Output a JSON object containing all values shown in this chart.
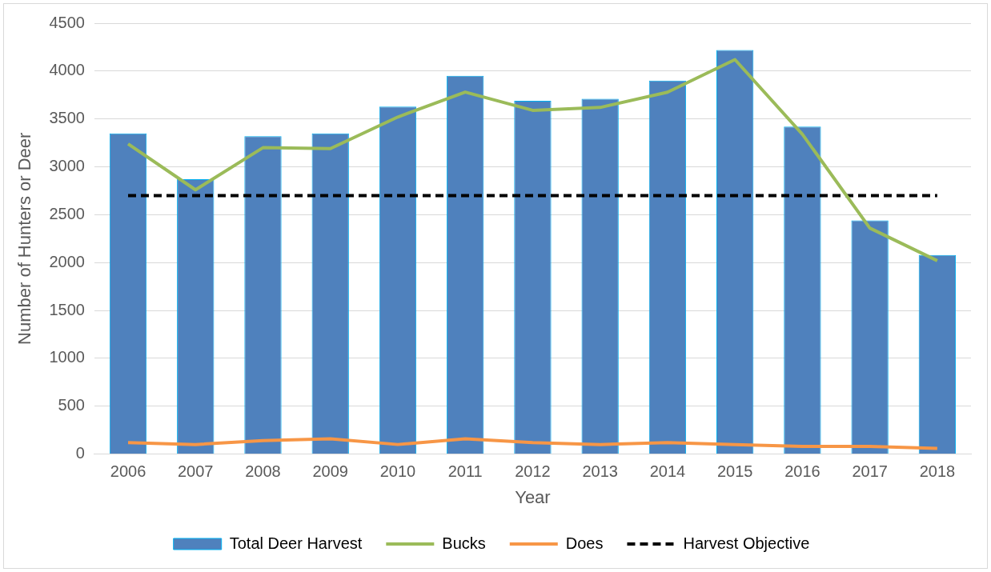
{
  "chart_data": {
    "type": "bar",
    "xlabel": "Year",
    "ylabel": "Number of Hunters or Deer",
    "categories": [
      "2006",
      "2007",
      "2008",
      "2009",
      "2010",
      "2011",
      "2012",
      "2013",
      "2014",
      "2015",
      "2016",
      "2017",
      "2018"
    ],
    "series": [
      {
        "name": "Total Deer Harvest",
        "color": "#4f81bd",
        "values": [
          3350,
          2870,
          3320,
          3350,
          3630,
          3950,
          3690,
          3710,
          3900,
          4220,
          3420,
          2440,
          2080
        ]
      },
      {
        "name": "Bucks",
        "type": "line",
        "color": "#9bbb59",
        "values": [
          3240,
          2760,
          3200,
          3190,
          3520,
          3780,
          3590,
          3620,
          3780,
          4120,
          3340,
          2360,
          2020
        ]
      },
      {
        "name": "Does",
        "type": "line",
        "color": "#f79646",
        "values": [
          120,
          100,
          140,
          160,
          100,
          160,
          120,
          100,
          120,
          100,
          80,
          80,
          60
        ]
      },
      {
        "name": "Harvest Objective",
        "type": "line",
        "color": "#000000",
        "line_style": "dashed",
        "values": [
          2700,
          2700,
          2700,
          2700,
          2700,
          2700,
          2700,
          2700,
          2700,
          2700,
          2700,
          2700,
          2700
        ]
      }
    ],
    "ylim": [
      0,
      4500
    ],
    "yticks": [
      0,
      500,
      1000,
      1500,
      2000,
      2500,
      3000,
      3500,
      4000,
      4500
    ],
    "grid": "y",
    "legend": "bottom",
    "marker": "none"
  }
}
